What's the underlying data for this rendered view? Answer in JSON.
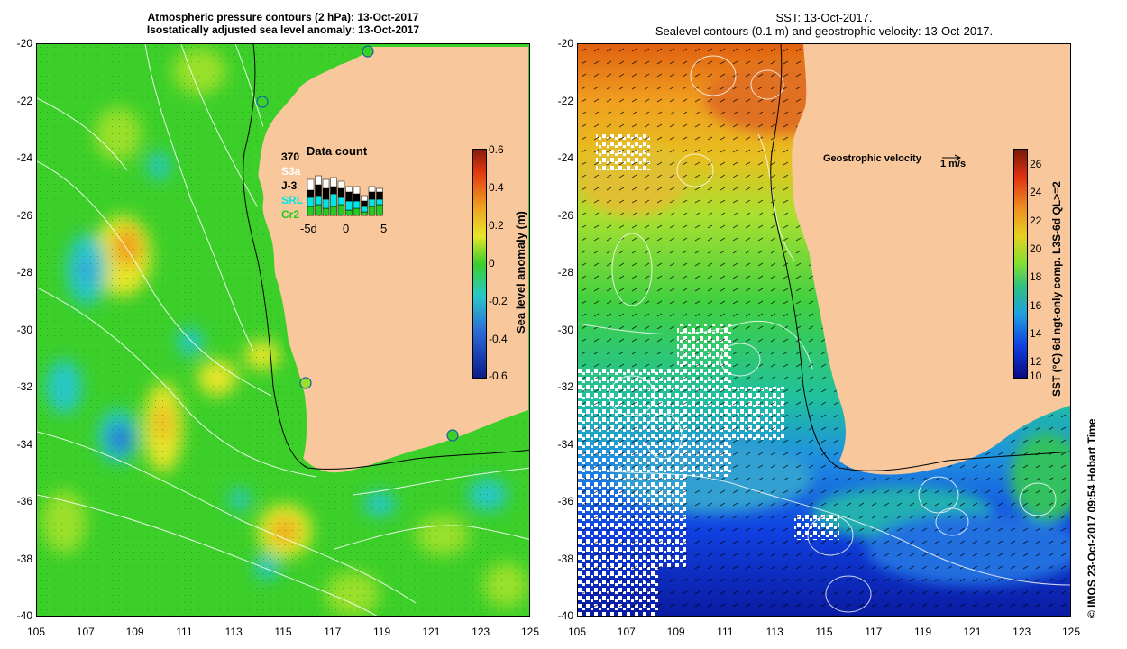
{
  "left_panel": {
    "title_line1": "Atmospheric pressure contours (2 hPa): 13-Oct-2017",
    "title_line2": "Isostatically adjusted sea level anomaly: 13-Oct-2017",
    "colorbar": {
      "label": "Sea level anomaly (m)",
      "ticks": [
        "0.6",
        "0.4",
        "0.2",
        "0",
        "-0.2",
        "-0.4",
        "-0.6"
      ]
    },
    "data_count": {
      "total": "370",
      "title": "Data count",
      "satellites": [
        {
          "name": "S3a",
          "color": "#ffffff"
        },
        {
          "name": "J-3",
          "color": "#000000"
        },
        {
          "name": "SRL",
          "color": "#00e5e5"
        },
        {
          "name": "Cr2",
          "color": "#22cc22"
        }
      ],
      "axis_ticks": [
        "-5d",
        "0",
        "5"
      ]
    }
  },
  "right_panel": {
    "title_line1": "SST: 13-Oct-2017.",
    "title_line2": "Sealevel contours (0.1 m) and geostrophic velocity: 13-Oct-2017.",
    "velocity_legend": "Geostrophic velocity",
    "velocity_scale": "1 m/s",
    "colorbar": {
      "label": "SST (°C) 6d ngt-only comp. L3S-6d QL>=2",
      "ticks": [
        "26",
        "24",
        "22",
        "20",
        "18",
        "16",
        "14",
        "12",
        "10"
      ]
    }
  },
  "axes": {
    "y_ticks": [
      "-20",
      "-22",
      "-24",
      "-26",
      "-28",
      "-30",
      "-32",
      "-34",
      "-36",
      "-38",
      "-40"
    ],
    "x_ticks": [
      "105",
      "107",
      "109",
      "111",
      "113",
      "115",
      "117",
      "119",
      "121",
      "123",
      "125"
    ]
  },
  "credit": "© IMOS 23-Oct-2017 09:54 Hobart Time",
  "colors": {
    "land": "#f8c79b",
    "ssh_green": "#3ccf2a",
    "ssh_yellow": "#e6e62a",
    "ssh_cyan": "#28c8c8",
    "ssh_blue": "#2c6ad6",
    "sst_orange": "#f0a020",
    "sst_green": "#40d040",
    "sst_blue": "#1040e0"
  }
}
